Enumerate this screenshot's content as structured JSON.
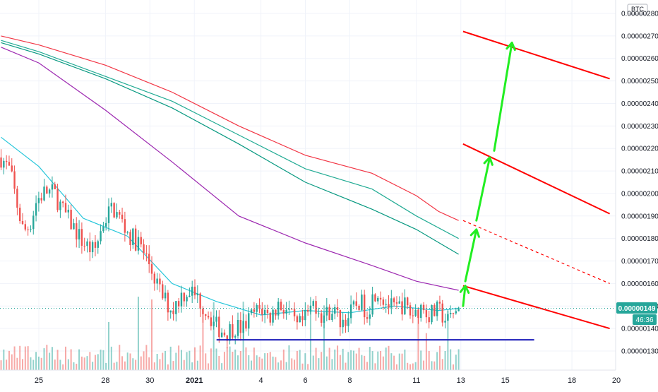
{
  "chart_data": {
    "type": "candlestick",
    "symbol_quote": "BTC",
    "price_axis": {
      "ticks": [
        "0.00000280",
        "0.00000270",
        "0.00000260",
        "0.00000250",
        "0.00000240",
        "0.00000230",
        "0.00000220",
        "0.00000210",
        "0.00000200",
        "0.00000190",
        "0.00000180",
        "0.00000170",
        "0.00000160",
        "0.00000150",
        "0.00000140",
        "0.00000130"
      ],
      "range": [
        1.24e-06,
        2.84e-06
      ]
    },
    "time_axis": {
      "ticks": [
        {
          "label": "25",
          "day": 25
        },
        {
          "label": "28",
          "day": 28
        },
        {
          "label": "30",
          "day": 30
        },
        {
          "label": "2021",
          "day": 32,
          "bold": true
        },
        {
          "label": "4",
          "day": 35
        },
        {
          "label": "6",
          "day": 37
        },
        {
          "label": "8",
          "day": 39
        },
        {
          "label": "11",
          "day": 42
        },
        {
          "label": "13",
          "day": 44
        },
        {
          "label": "15",
          "day": 46
        },
        {
          "label": "18",
          "day": 49
        },
        {
          "label": "20",
          "day": 51
        }
      ]
    },
    "current_price": {
      "label": "0.00000149",
      "value": 1.49e-06,
      "color": "#26a69a"
    },
    "countdown": {
      "label": "46:36",
      "color": "#26a69a"
    },
    "colors": {
      "up": "#26a69a",
      "down": "#ef5350",
      "grid": "#f0f3fa",
      "axis_text": "#131722"
    },
    "moving_averages": [
      {
        "color": "#f23645",
        "points": [
          [
            23.3,
            2.7e-06
          ],
          [
            25,
            2.66e-06
          ],
          [
            28,
            2.57e-06
          ],
          [
            31,
            2.45e-06
          ],
          [
            34,
            2.3e-06
          ],
          [
            37,
            2.17e-06
          ],
          [
            40,
            2.09e-06
          ],
          [
            42,
            1.99e-06
          ],
          [
            43,
            1.92e-06
          ],
          [
            43.9,
            1.88e-06
          ]
        ]
      },
      {
        "color": "#22ab94",
        "points": [
          [
            23.3,
            2.68e-06
          ],
          [
            25,
            2.63e-06
          ],
          [
            28,
            2.52e-06
          ],
          [
            31,
            2.41e-06
          ],
          [
            34,
            2.26e-06
          ],
          [
            37,
            2.11e-06
          ],
          [
            40,
            2.02e-06
          ],
          [
            42,
            1.9e-06
          ],
          [
            43.9,
            1.8e-06
          ]
        ]
      },
      {
        "color": "#089981",
        "points": [
          [
            23.3,
            2.67e-06
          ],
          [
            25,
            2.62e-06
          ],
          [
            28,
            2.51e-06
          ],
          [
            31,
            2.38e-06
          ],
          [
            34,
            2.22e-06
          ],
          [
            37,
            2.05e-06
          ],
          [
            40,
            1.93e-06
          ],
          [
            42,
            1.84e-06
          ],
          [
            43.9,
            1.73e-06
          ]
        ]
      },
      {
        "color": "#9c27b0",
        "points": [
          [
            23.3,
            2.65e-06
          ],
          [
            25,
            2.58e-06
          ],
          [
            28,
            2.37e-06
          ],
          [
            31,
            2.14e-06
          ],
          [
            34,
            1.9e-06
          ],
          [
            37,
            1.78e-06
          ],
          [
            40,
            1.68e-06
          ],
          [
            42,
            1.61e-06
          ],
          [
            43.9,
            1.57e-06
          ]
        ]
      },
      {
        "color": "#26c6da",
        "points": [
          [
            23.3,
            2.25e-06
          ],
          [
            25,
            2.12e-06
          ],
          [
            27,
            1.89e-06
          ],
          [
            29,
            1.81e-06
          ],
          [
            31,
            1.6e-06
          ],
          [
            33,
            1.52e-06
          ],
          [
            35,
            1.46e-06
          ],
          [
            37,
            1.48e-06
          ],
          [
            39,
            1.47e-06
          ],
          [
            41,
            1.5e-06
          ],
          [
            43,
            1.48e-06
          ],
          [
            43.9,
            1.49e-06
          ]
        ]
      }
    ],
    "support_line": {
      "value": 1.35e-06,
      "from_day": 33,
      "to_day": 47.3,
      "color": "#1a1ab8"
    },
    "resistance_lines": [
      {
        "color": "#ff0000",
        "points": [
          [
            44.1,
            1.59e-06
          ],
          [
            50.7,
            1.4e-06
          ]
        ]
      },
      {
        "color": "#ff0000",
        "points": [
          [
            44.1,
            2.22e-06
          ],
          [
            50.7,
            1.91e-06
          ]
        ]
      },
      {
        "color": "#ff0000",
        "points": [
          [
            44.1,
            2.72e-06
          ],
          [
            50.7,
            2.51e-06
          ]
        ]
      }
    ],
    "dashed_trendline": {
      "color": "#ff0000",
      "points": [
        [
          44.1,
          1.88e-06
        ],
        [
          50.7,
          1.6e-06
        ]
      ]
    },
    "projection_arrows": [
      {
        "color": "#22ee22",
        "from": [
          44.1,
          1.5e-06
        ],
        "to": [
          44.2,
          1.59e-06
        ]
      },
      {
        "color": "#22ee22",
        "from": [
          44.2,
          1.61e-06
        ],
        "to": [
          44.7,
          1.84e-06
        ]
      },
      {
        "color": "#22ee22",
        "from": [
          44.7,
          1.88e-06
        ],
        "to": [
          45.3,
          2.16e-06
        ]
      },
      {
        "color": "#22ee22",
        "from": [
          45.5,
          2.19e-06
        ],
        "to": [
          46.3,
          2.67e-06
        ]
      }
    ],
    "price_path": [
      [
        23.3,
        2.16e-06
      ],
      [
        23.7,
        2.1e-06
      ],
      [
        24.0,
        1.96e-06
      ],
      [
        24.3,
        1.83e-06
      ],
      [
        24.6,
        1.86e-06
      ],
      [
        24.9,
        1.97e-06
      ],
      [
        25.3,
        2.01e-06
      ],
      [
        25.7,
        2e-06
      ],
      [
        26.1,
        1.92e-06
      ],
      [
        26.5,
        1.86e-06
      ],
      [
        27.0,
        1.78e-06
      ],
      [
        27.5,
        1.74e-06
      ],
      [
        27.9,
        1.87e-06
      ],
      [
        28.3,
        1.94e-06
      ],
      [
        28.7,
        1.88e-06
      ],
      [
        29.1,
        1.81e-06
      ],
      [
        29.5,
        1.78e-06
      ],
      [
        30.0,
        1.68e-06
      ],
      [
        30.5,
        1.55e-06
      ],
      [
        31.0,
        1.48e-06
      ],
      [
        31.4,
        1.55e-06
      ],
      [
        31.8,
        1.57e-06
      ],
      [
        32.2,
        1.53e-06
      ],
      [
        32.6,
        1.47e-06
      ],
      [
        33.0,
        1.41e-06
      ],
      [
        33.4,
        1.38e-06
      ],
      [
        33.8,
        1.41e-06
      ],
      [
        34.2,
        1.4e-06
      ],
      [
        34.6,
        1.46e-06
      ],
      [
        35.0,
        1.49e-06
      ],
      [
        35.4,
        1.45e-06
      ],
      [
        35.8,
        1.51e-06
      ],
      [
        36.2,
        1.48e-06
      ],
      [
        36.6,
        1.4e-06
      ],
      [
        37.0,
        1.44e-06
      ],
      [
        37.4,
        1.52e-06
      ],
      [
        37.8,
        1.45e-06
      ],
      [
        38.2,
        1.49e-06
      ],
      [
        38.6,
        1.43e-06
      ],
      [
        39.0,
        1.46e-06
      ],
      [
        39.4,
        1.52e-06
      ],
      [
        39.8,
        1.48e-06
      ],
      [
        40.2,
        1.58e-06
      ],
      [
        40.6,
        1.52e-06
      ],
      [
        41.0,
        1.48e-06
      ],
      [
        41.4,
        1.51e-06
      ],
      [
        41.8,
        1.46e-06
      ],
      [
        42.2,
        1.5e-06
      ],
      [
        42.6,
        1.46e-06
      ],
      [
        43.0,
        1.48e-06
      ],
      [
        43.4,
        1.43e-06
      ],
      [
        43.7,
        1.47e-06
      ],
      [
        43.9,
        1.49e-06
      ]
    ]
  }
}
